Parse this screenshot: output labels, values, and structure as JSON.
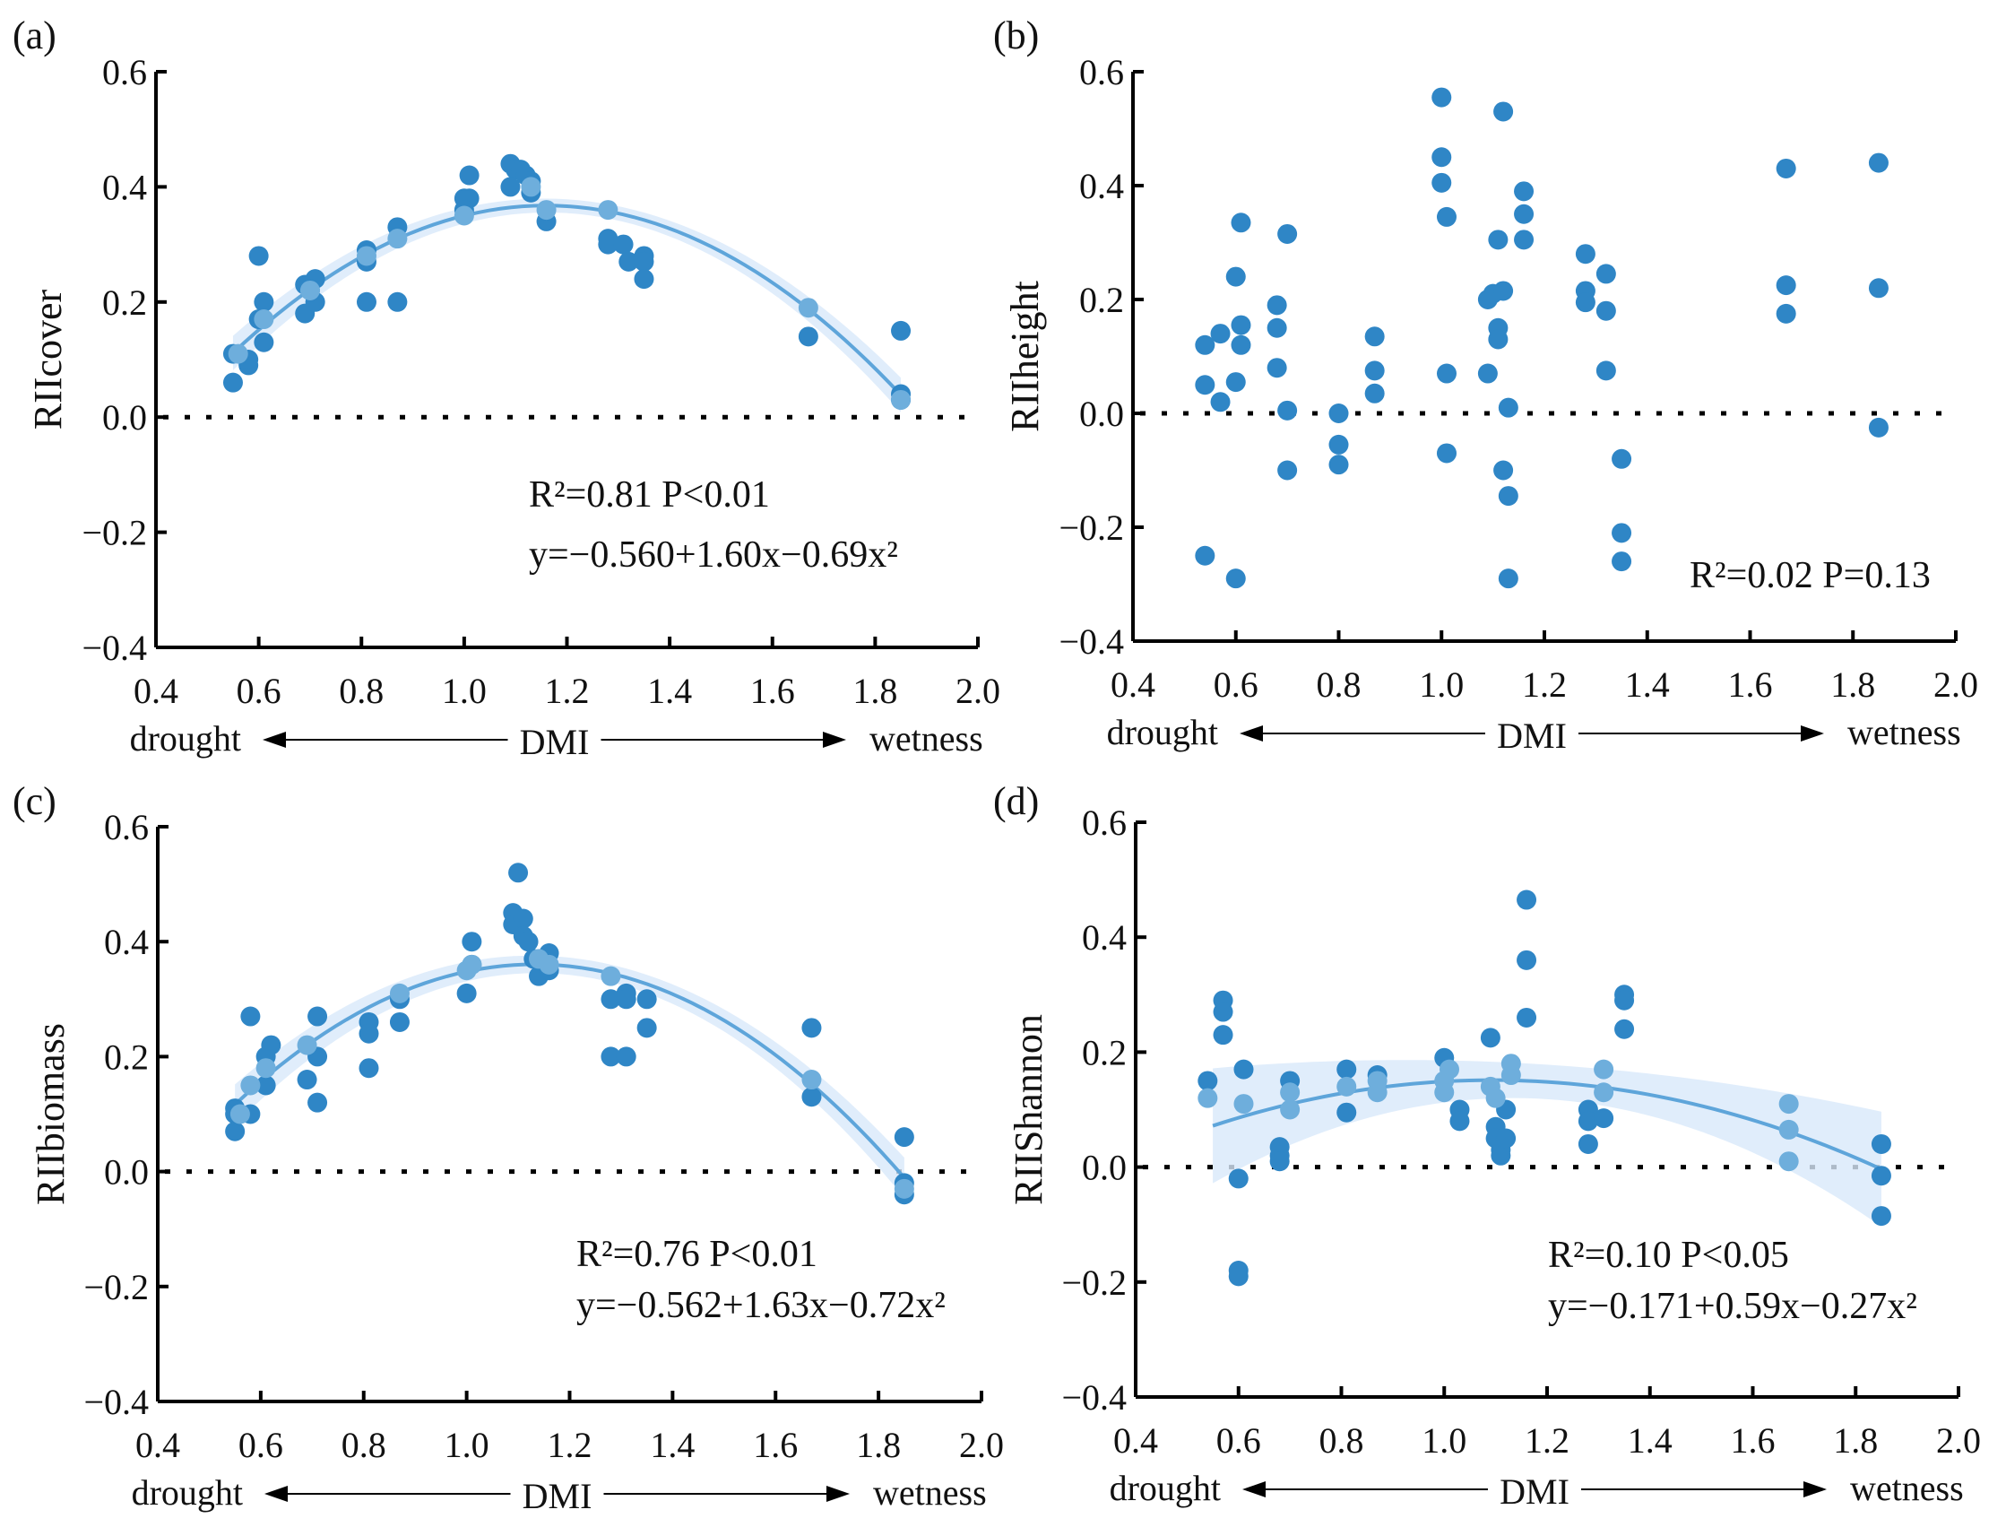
{
  "colors": {
    "point_dark": "#2f86c6",
    "point_light": "#6eaedc",
    "curve": "#5ea5da",
    "band": "#d8e9fa",
    "axis": "#000000"
  },
  "shared": {
    "x_ticks": [
      "0.4",
      "0.6",
      "0.8",
      "1.0",
      "1.2",
      "1.4",
      "1.6",
      "1.8",
      "2.0"
    ],
    "y_ticks": [
      "−0.4",
      "−0.2",
      "0.0",
      "0.2",
      "0.4",
      "0.6"
    ],
    "drought": "drought",
    "wetness": "wetness",
    "xlabel": "DMI"
  },
  "chart_data": [
    {
      "type": "scatter",
      "panel": "(a)",
      "ylabel": "RIIcover",
      "xlabel": "DMI",
      "xlim": [
        0.4,
        2.0
      ],
      "ylim": [
        -0.4,
        0.6
      ],
      "stat": "R²=0.81 P<0.01",
      "equation": "y=−0.560+1.60x−0.69x²",
      "fit": {
        "a": -0.56,
        "b": 1.6,
        "c": -0.69,
        "x_range": [
          0.55,
          1.85
        ],
        "ci_center": 0.012,
        "ci_end": 0.03
      },
      "points": [
        [
          0.55,
          0.11
        ],
        [
          0.55,
          0.06
        ],
        [
          0.58,
          0.09
        ],
        [
          0.58,
          0.1
        ],
        [
          0.6,
          0.28
        ],
        [
          0.61,
          0.2
        ],
        [
          0.61,
          0.13
        ],
        [
          0.6,
          0.17
        ],
        [
          0.69,
          0.23
        ],
        [
          0.69,
          0.18
        ],
        [
          0.71,
          0.24
        ],
        [
          0.71,
          0.2
        ],
        [
          0.7,
          0.22
        ],
        [
          0.81,
          0.29
        ],
        [
          0.81,
          0.27
        ],
        [
          0.81,
          0.2
        ],
        [
          0.87,
          0.33
        ],
        [
          0.87,
          0.2
        ],
        [
          1.0,
          0.38
        ],
        [
          1.01,
          0.42
        ],
        [
          1.01,
          0.38
        ],
        [
          1.0,
          0.36
        ],
        [
          1.09,
          0.44
        ],
        [
          1.1,
          0.43
        ],
        [
          1.09,
          0.4
        ],
        [
          1.11,
          0.43
        ],
        [
          1.12,
          0.42
        ],
        [
          1.13,
          0.41
        ],
        [
          1.13,
          0.39
        ],
        [
          1.16,
          0.34
        ],
        [
          1.28,
          0.31
        ],
        [
          1.28,
          0.3
        ],
        [
          1.31,
          0.3
        ],
        [
          1.32,
          0.27
        ],
        [
          1.35,
          0.28
        ],
        [
          1.35,
          0.27
        ],
        [
          1.35,
          0.24
        ],
        [
          1.67,
          0.14
        ],
        [
          1.85,
          0.15
        ],
        [
          1.85,
          0.04
        ],
        [
          1.85,
          0.03
        ]
      ],
      "light_points": [
        [
          0.56,
          0.11
        ],
        [
          0.61,
          0.17
        ],
        [
          0.7,
          0.22
        ],
        [
          0.81,
          0.28
        ],
        [
          0.87,
          0.31
        ],
        [
          1.0,
          0.35
        ],
        [
          1.13,
          0.4
        ],
        [
          1.16,
          0.36
        ],
        [
          1.28,
          0.36
        ],
        [
          1.67,
          0.19
        ],
        [
          1.85,
          0.03
        ]
      ]
    },
    {
      "type": "scatter",
      "panel": "(b)",
      "ylabel": "RIIheight",
      "xlabel": "DMI",
      "xlim": [
        0.4,
        2.0
      ],
      "ylim": [
        -0.4,
        0.6
      ],
      "stat": "R²=0.02 P=0.13",
      "equation": null,
      "fit": null,
      "points": [
        [
          0.54,
          0.12
        ],
        [
          0.54,
          0.05
        ],
        [
          0.54,
          -0.25
        ],
        [
          0.57,
          0.14
        ],
        [
          0.57,
          0.02
        ],
        [
          0.6,
          0.24
        ],
        [
          0.6,
          0.055
        ],
        [
          0.6,
          -0.29
        ],
        [
          0.61,
          0.335
        ],
        [
          0.61,
          0.155
        ],
        [
          0.61,
          0.12
        ],
        [
          0.68,
          0.19
        ],
        [
          0.68,
          0.15
        ],
        [
          0.68,
          0.08
        ],
        [
          0.7,
          0.315
        ],
        [
          0.7,
          0.005
        ],
        [
          0.7,
          -0.1
        ],
        [
          0.8,
          0.0
        ],
        [
          0.8,
          -0.055
        ],
        [
          0.8,
          -0.09
        ],
        [
          0.87,
          0.135
        ],
        [
          0.87,
          0.075
        ],
        [
          0.87,
          0.035
        ],
        [
          1.0,
          0.555
        ],
        [
          1.0,
          0.45
        ],
        [
          1.0,
          0.405
        ],
        [
          1.01,
          0.345
        ],
        [
          1.01,
          0.07
        ],
        [
          1.01,
          -0.07
        ],
        [
          1.09,
          0.07
        ],
        [
          1.09,
          0.2
        ],
        [
          1.1,
          0.21
        ],
        [
          1.11,
          0.305
        ],
        [
          1.11,
          0.15
        ],
        [
          1.11,
          0.13
        ],
        [
          1.12,
          0.53
        ],
        [
          1.12,
          0.215
        ],
        [
          1.12,
          -0.1
        ],
        [
          1.13,
          0.01
        ],
        [
          1.13,
          -0.145
        ],
        [
          1.13,
          -0.29
        ],
        [
          1.16,
          0.39
        ],
        [
          1.16,
          0.35
        ],
        [
          1.16,
          0.305
        ],
        [
          1.28,
          0.28
        ],
        [
          1.28,
          0.215
        ],
        [
          1.28,
          0.195
        ],
        [
          1.32,
          0.245
        ],
        [
          1.32,
          0.18
        ],
        [
          1.32,
          0.075
        ],
        [
          1.35,
          -0.08
        ],
        [
          1.35,
          -0.21
        ],
        [
          1.35,
          -0.26
        ],
        [
          1.67,
          0.43
        ],
        [
          1.67,
          0.225
        ],
        [
          1.67,
          0.175
        ],
        [
          1.85,
          0.44
        ],
        [
          1.85,
          0.22
        ],
        [
          1.85,
          -0.025
        ]
      ],
      "light_points": []
    },
    {
      "type": "scatter",
      "panel": "(c)",
      "ylabel": "RIIbiomass",
      "xlabel": "DMI",
      "xlim": [
        0.4,
        2.0
      ],
      "ylim": [
        -0.4,
        0.6
      ],
      "stat": "R²=0.76 P<0.01",
      "equation": "y=−0.562+1.63x−0.72x²",
      "fit": {
        "a": -0.562,
        "b": 1.63,
        "c": -0.72,
        "x_range": [
          0.55,
          1.85
        ],
        "ci_center": 0.015,
        "ci_end": 0.035
      },
      "points": [
        [
          0.55,
          0.11
        ],
        [
          0.55,
          0.1
        ],
        [
          0.55,
          0.07
        ],
        [
          0.58,
          0.27
        ],
        [
          0.58,
          0.1
        ],
        [
          0.61,
          0.2
        ],
        [
          0.62,
          0.22
        ],
        [
          0.61,
          0.15
        ],
        [
          0.69,
          0.16
        ],
        [
          0.71,
          0.27
        ],
        [
          0.71,
          0.2
        ],
        [
          0.71,
          0.12
        ],
        [
          0.81,
          0.26
        ],
        [
          0.81,
          0.24
        ],
        [
          0.81,
          0.18
        ],
        [
          0.87,
          0.3
        ],
        [
          0.87,
          0.26
        ],
        [
          1.0,
          0.31
        ],
        [
          1.01,
          0.36
        ],
        [
          1.01,
          0.4
        ],
        [
          1.09,
          0.45
        ],
        [
          1.09,
          0.43
        ],
        [
          1.1,
          0.52
        ],
        [
          1.11,
          0.44
        ],
        [
          1.11,
          0.41
        ],
        [
          1.12,
          0.4
        ],
        [
          1.13,
          0.37
        ],
        [
          1.14,
          0.34
        ],
        [
          1.16,
          0.38
        ],
        [
          1.16,
          0.35
        ],
        [
          1.28,
          0.3
        ],
        [
          1.28,
          0.2
        ],
        [
          1.31,
          0.31
        ],
        [
          1.31,
          0.3
        ],
        [
          1.31,
          0.2
        ],
        [
          1.35,
          0.3
        ],
        [
          1.35,
          0.25
        ],
        [
          1.67,
          0.25
        ],
        [
          1.67,
          0.13
        ],
        [
          1.85,
          0.06
        ],
        [
          1.85,
          -0.02
        ],
        [
          1.85,
          -0.04
        ]
      ],
      "light_points": [
        [
          0.56,
          0.1
        ],
        [
          0.58,
          0.15
        ],
        [
          0.61,
          0.18
        ],
        [
          0.69,
          0.22
        ],
        [
          0.87,
          0.31
        ],
        [
          1.0,
          0.35
        ],
        [
          1.01,
          0.36
        ],
        [
          1.14,
          0.37
        ],
        [
          1.16,
          0.36
        ],
        [
          1.28,
          0.34
        ],
        [
          1.67,
          0.16
        ],
        [
          1.85,
          -0.03
        ]
      ]
    },
    {
      "type": "scatter",
      "panel": "(d)",
      "ylabel": "RIIShannon",
      "xlabel": "DMI",
      "xlim": [
        0.4,
        2.0
      ],
      "ylim": [
        -0.4,
        0.6
      ],
      "stat": "R²=0.10 P<0.05",
      "equation": "y=−0.171+0.59x−0.27x²",
      "fit": {
        "a": -0.171,
        "b": 0.59,
        "c": -0.27,
        "x_range": [
          0.55,
          1.85
        ],
        "ci_center": 0.03,
        "ci_end": 0.1
      },
      "points": [
        [
          0.54,
          0.15
        ],
        [
          0.57,
          0.29
        ],
        [
          0.57,
          0.27
        ],
        [
          0.57,
          0.23
        ],
        [
          0.61,
          0.17
        ],
        [
          0.6,
          -0.02
        ],
        [
          0.6,
          -0.18
        ],
        [
          0.6,
          -0.19
        ],
        [
          0.68,
          0.035
        ],
        [
          0.68,
          0.02
        ],
        [
          0.68,
          0.01
        ],
        [
          0.7,
          0.15
        ],
        [
          0.81,
          0.17
        ],
        [
          0.81,
          0.095
        ],
        [
          0.87,
          0.16
        ],
        [
          1.0,
          0.19
        ],
        [
          1.03,
          0.1
        ],
        [
          1.03,
          0.08
        ],
        [
          1.09,
          0.225
        ],
        [
          1.1,
          0.07
        ],
        [
          1.1,
          0.05
        ],
        [
          1.11,
          0.03
        ],
        [
          1.11,
          0.02
        ],
        [
          1.12,
          0.1
        ],
        [
          1.12,
          0.05
        ],
        [
          1.16,
          0.465
        ],
        [
          1.16,
          0.36
        ],
        [
          1.16,
          0.26
        ],
        [
          1.28,
          0.1
        ],
        [
          1.28,
          0.08
        ],
        [
          1.28,
          0.04
        ],
        [
          1.31,
          0.085
        ],
        [
          1.35,
          0.3
        ],
        [
          1.35,
          0.29
        ],
        [
          1.35,
          0.24
        ],
        [
          1.85,
          0.04
        ],
        [
          1.85,
          -0.015
        ],
        [
          1.85,
          -0.085
        ]
      ],
      "light_points": [
        [
          0.54,
          0.12
        ],
        [
          0.61,
          0.11
        ],
        [
          0.7,
          0.13
        ],
        [
          0.7,
          0.1
        ],
        [
          0.81,
          0.14
        ],
        [
          0.87,
          0.15
        ],
        [
          0.87,
          0.13
        ],
        [
          1.0,
          0.15
        ],
        [
          1.01,
          0.17
        ],
        [
          1.0,
          0.13
        ],
        [
          1.09,
          0.14
        ],
        [
          1.1,
          0.12
        ],
        [
          1.13,
          0.18
        ],
        [
          1.13,
          0.16
        ],
        [
          1.31,
          0.17
        ],
        [
          1.31,
          0.13
        ],
        [
          1.67,
          0.11
        ],
        [
          1.67,
          0.065
        ],
        [
          1.67,
          0.01
        ]
      ]
    }
  ]
}
